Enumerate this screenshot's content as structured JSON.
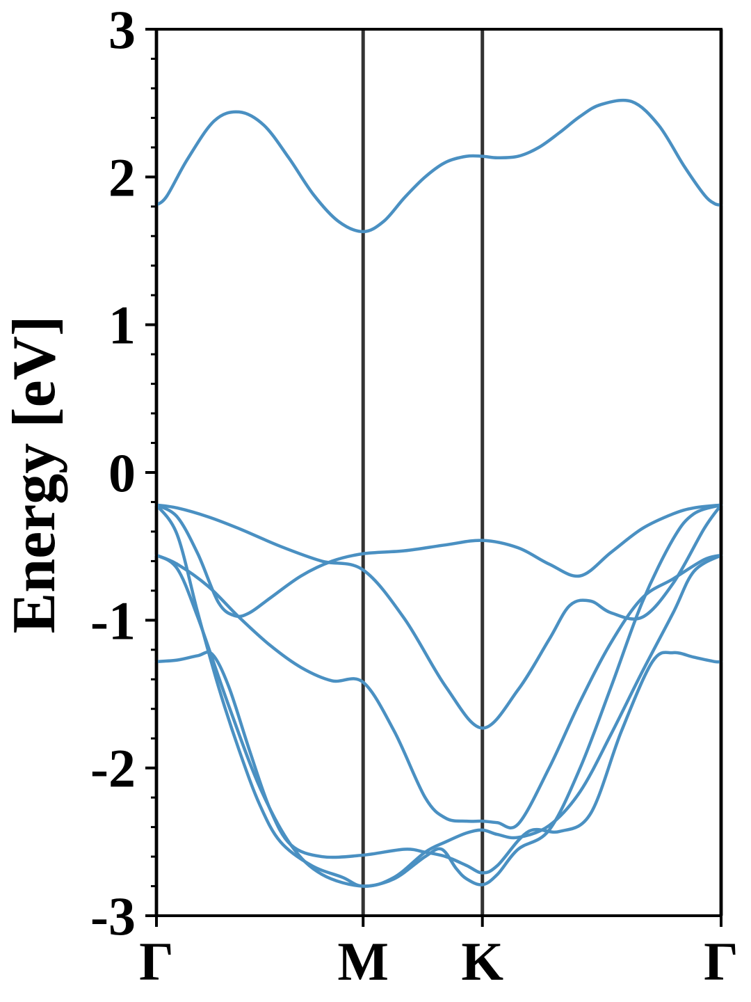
{
  "chart_data": {
    "type": "line",
    "title": "",
    "ylabel": "Energy [eV]",
    "xlabel": "",
    "ylim": [
      -3,
      3
    ],
    "yticks": [
      -3,
      -2,
      -1,
      0,
      1,
      2,
      3
    ],
    "ytick_labels": [
      "-3",
      "-2",
      "-1",
      "0",
      "1",
      "2",
      "3"
    ],
    "y_minor_step": 0.2,
    "grid": false,
    "legend": "none",
    "xlim": [
      0,
      2.732
    ],
    "kpoints": [
      {
        "label": "Γ",
        "x": 0
      },
      {
        "label": "M",
        "x": 1.0
      },
      {
        "label": "K",
        "x": 1.577
      },
      {
        "label": "Γ",
        "x": 2.732
      }
    ],
    "kpath_line_color": "#333333",
    "band_color": "#4a90c2",
    "series": [
      {
        "x": [
          0,
          0.05,
          0.15,
          0.28,
          0.4,
          0.52,
          0.64,
          0.76,
          0.88,
          1.0,
          1.1,
          1.2,
          1.3,
          1.4,
          1.5,
          1.577,
          1.65,
          1.75,
          1.85,
          1.95,
          2.05,
          2.15,
          2.3,
          2.43,
          2.55,
          2.65,
          2.7,
          2.732
        ],
        "y": [
          1.81,
          1.87,
          2.12,
          2.38,
          2.44,
          2.35,
          2.13,
          1.88,
          1.7,
          1.63,
          1.7,
          1.86,
          2.0,
          2.1,
          2.14,
          2.14,
          2.13,
          2.14,
          2.2,
          2.3,
          2.41,
          2.49,
          2.51,
          2.35,
          2.08,
          1.88,
          1.82,
          1.81
        ]
      },
      {
        "x": [
          0,
          0.1,
          0.25,
          0.4,
          0.6,
          0.8,
          1.0,
          1.2,
          1.4,
          1.577,
          1.75,
          1.9,
          2.0,
          2.1,
          2.2,
          2.35,
          2.5,
          2.65,
          2.732
        ],
        "y": [
          -0.22,
          -0.24,
          -0.3,
          -0.38,
          -0.5,
          -0.6,
          -0.66,
          -0.99,
          -1.45,
          -1.73,
          -1.47,
          -1.13,
          -0.9,
          -0.87,
          -0.95,
          -0.98,
          -0.75,
          -0.38,
          -0.22
        ]
      },
      {
        "x": [
          0,
          0.1,
          0.2,
          0.3,
          0.38,
          0.45,
          0.55,
          0.7,
          0.85,
          1.0,
          1.2,
          1.4,
          1.577,
          1.75,
          1.9,
          2.05,
          2.2,
          2.35,
          2.5,
          2.6,
          2.732
        ],
        "y": [
          -0.22,
          -0.3,
          -0.55,
          -0.88,
          -0.97,
          -0.95,
          -0.85,
          -0.7,
          -0.6,
          -0.55,
          -0.53,
          -0.49,
          -0.46,
          -0.51,
          -0.62,
          -0.7,
          -0.54,
          -0.38,
          -0.28,
          -0.24,
          -0.22
        ]
      },
      {
        "x": [
          0,
          0.1,
          0.25,
          0.4,
          0.55,
          0.7,
          0.85,
          1.0,
          1.15,
          1.3,
          1.4,
          1.5,
          1.577,
          1.65,
          1.75,
          1.9,
          2.05,
          2.2,
          2.35,
          2.5,
          2.65,
          2.732
        ],
        "y": [
          -0.56,
          -0.62,
          -0.77,
          -0.98,
          -1.17,
          -1.32,
          -1.41,
          -1.42,
          -1.75,
          -2.2,
          -2.34,
          -2.36,
          -2.36,
          -2.37,
          -2.38,
          -2.0,
          -1.55,
          -1.15,
          -0.85,
          -0.72,
          -0.59,
          -0.56
        ]
      },
      {
        "x": [
          0,
          0.1,
          0.2,
          0.35,
          0.5,
          0.65,
          0.8,
          1.0,
          1.15,
          1.3,
          1.4,
          1.5,
          1.577,
          1.65,
          1.75,
          1.9,
          2.05,
          2.2,
          2.35,
          2.5,
          2.6,
          2.732
        ],
        "y": [
          -0.56,
          -0.65,
          -0.98,
          -1.58,
          -2.13,
          -2.52,
          -2.72,
          -2.8,
          -2.74,
          -2.57,
          -2.5,
          -2.44,
          -2.42,
          -2.45,
          -2.47,
          -2.39,
          -2.16,
          -1.77,
          -1.35,
          -0.95,
          -0.67,
          -0.56
        ]
      },
      {
        "x": [
          0,
          0.1,
          0.2,
          0.3,
          0.4,
          0.5,
          0.6,
          0.75,
          0.9,
          1.0,
          1.15,
          1.3,
          1.38,
          1.45,
          1.5,
          1.577,
          1.65,
          1.75,
          1.9,
          2.05,
          2.2,
          2.35,
          2.5,
          2.6,
          2.732
        ],
        "y": [
          -0.22,
          -0.42,
          -0.95,
          -1.45,
          -1.88,
          -2.25,
          -2.5,
          -2.66,
          -2.74,
          -2.8,
          -2.75,
          -2.6,
          -2.55,
          -2.68,
          -2.75,
          -2.79,
          -2.72,
          -2.55,
          -2.42,
          -2.0,
          -1.45,
          -0.88,
          -0.45,
          -0.28,
          -0.22
        ]
      },
      {
        "x": [
          0,
          0.1,
          0.2,
          0.27,
          0.35,
          0.45,
          0.55,
          0.65,
          0.8,
          1.0,
          1.2,
          1.3,
          1.4,
          1.5,
          1.577,
          1.65,
          1.8,
          1.95,
          2.1,
          2.25,
          2.4,
          2.5,
          2.6,
          2.7,
          2.732
        ],
        "y": [
          -1.28,
          -1.27,
          -1.24,
          -1.23,
          -1.45,
          -1.88,
          -2.28,
          -2.52,
          -2.6,
          -2.59,
          -2.55,
          -2.57,
          -2.6,
          -2.66,
          -2.71,
          -2.66,
          -2.43,
          -2.43,
          -2.31,
          -1.75,
          -1.28,
          -1.22,
          -1.25,
          -1.28,
          -1.28
        ]
      }
    ]
  }
}
